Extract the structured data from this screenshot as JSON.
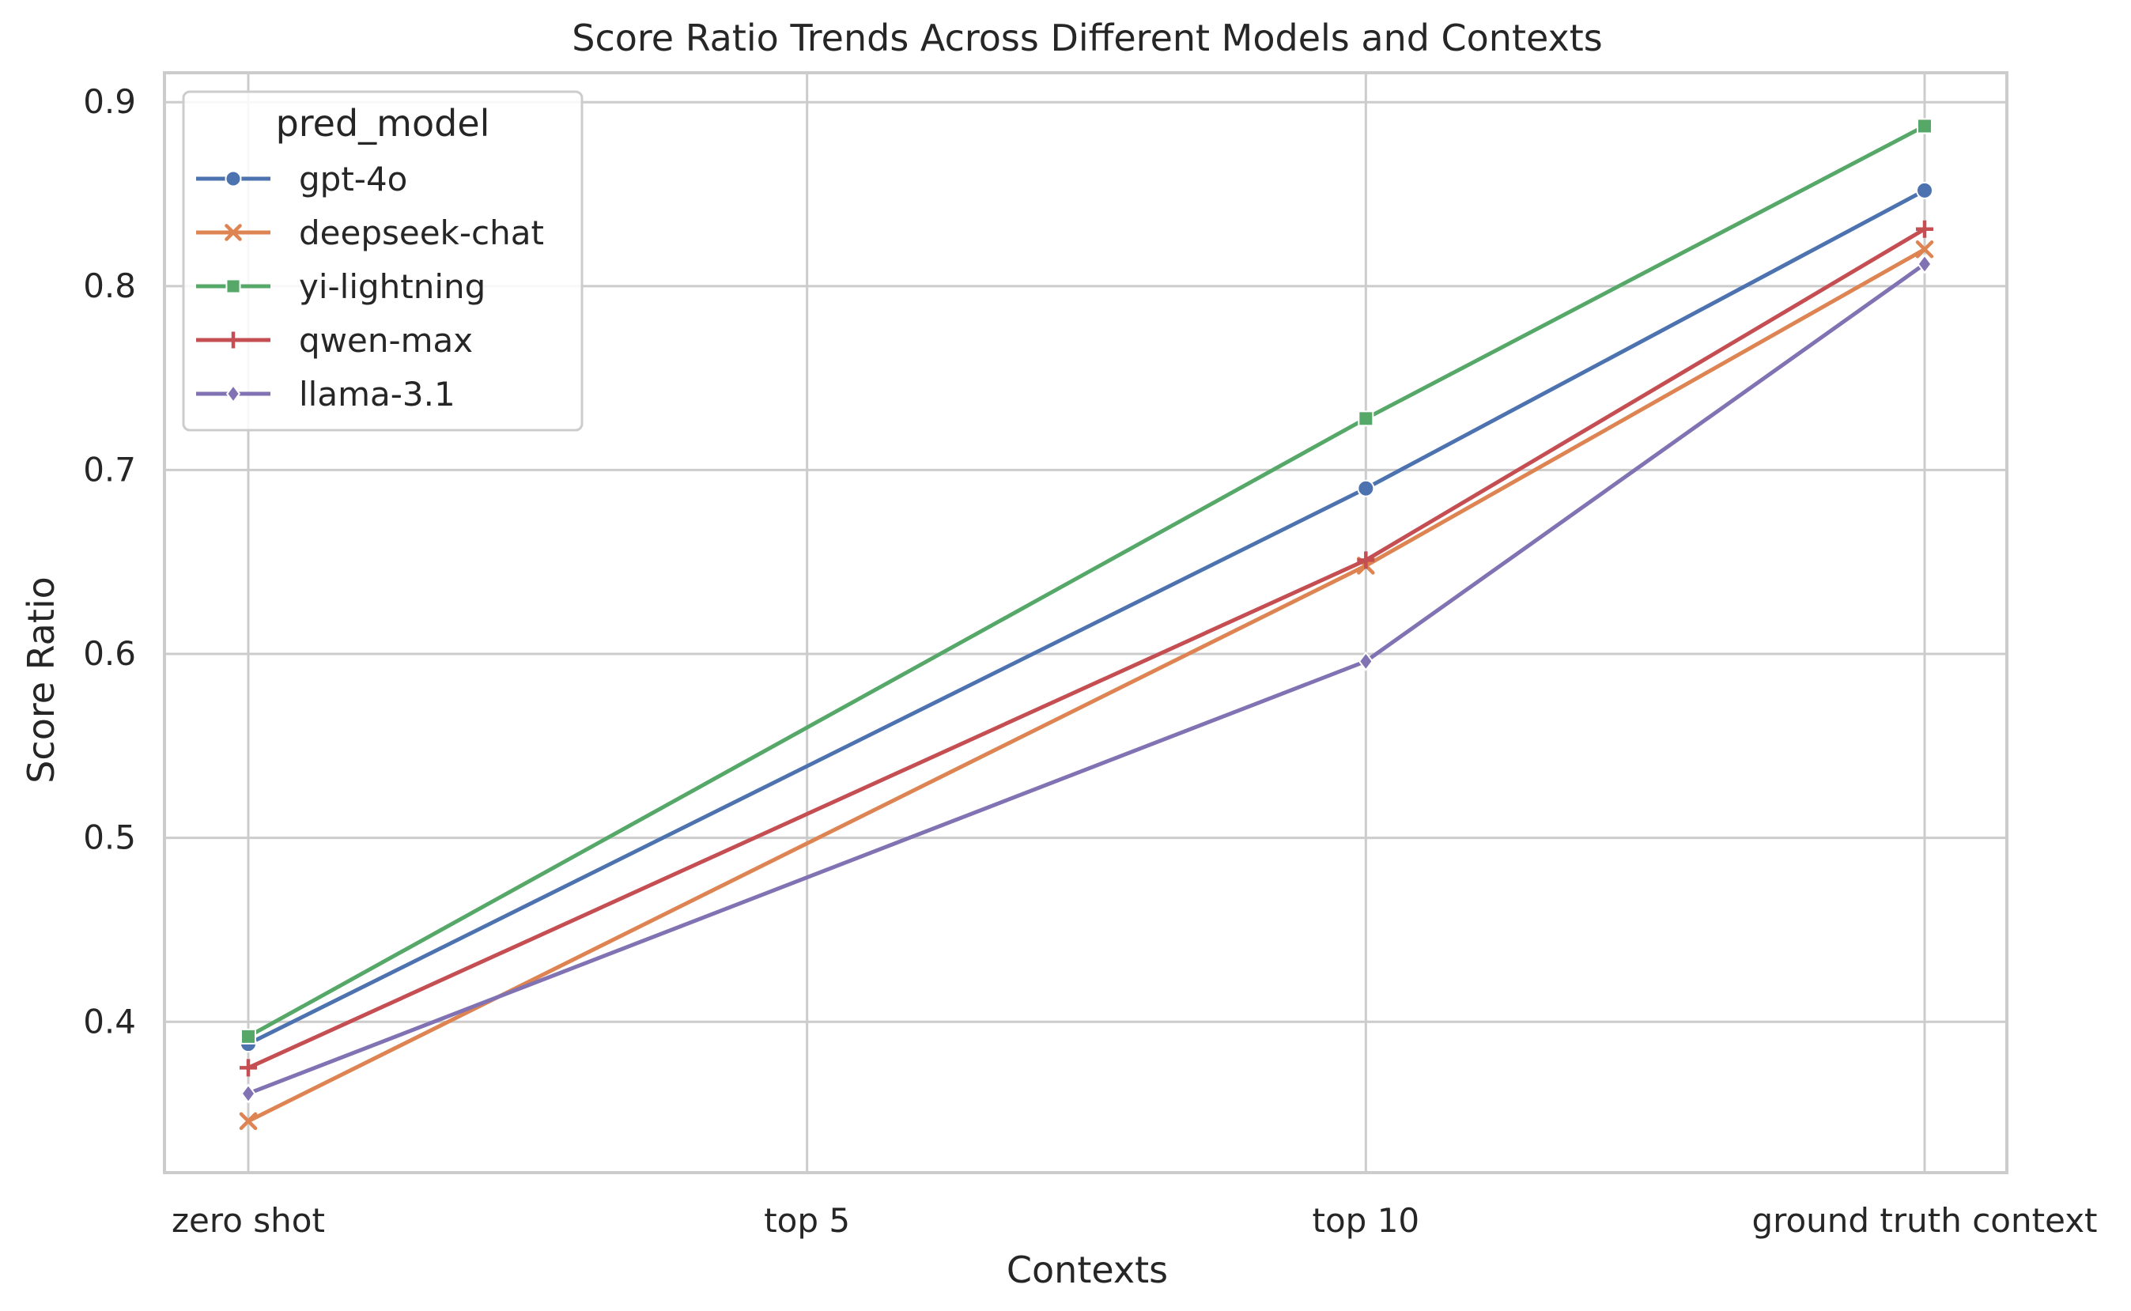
{
  "chart_data": {
    "type": "line",
    "title": "Score Ratio Trends Across Different Models and Contexts",
    "xlabel": "Contexts",
    "ylabel": "Score Ratio",
    "categories": [
      "zero shot",
      "top 5",
      "top 10",
      "ground truth context"
    ],
    "yticks": [
      "0.4",
      "0.5",
      "0.6",
      "0.7",
      "0.8",
      "0.9"
    ],
    "ylim": [
      0.318,
      0.916
    ],
    "grid": true,
    "legend": {
      "title": "pred_model",
      "position": "top-left"
    },
    "series": [
      {
        "name": "gpt-4o",
        "color": "#4c72b0",
        "marker": "circle",
        "values": [
          0.388,
          null,
          0.69,
          0.852
        ]
      },
      {
        "name": "deepseek-chat",
        "color": "#dd8452",
        "marker": "x",
        "values": [
          0.346,
          null,
          0.648,
          0.82
        ]
      },
      {
        "name": "yi-lightning",
        "color": "#55a868",
        "marker": "square",
        "values": [
          0.392,
          null,
          0.728,
          0.887
        ]
      },
      {
        "name": "qwen-max",
        "color": "#c44e52",
        "marker": "plus",
        "values": [
          0.375,
          null,
          0.651,
          0.831
        ]
      },
      {
        "name": "llama-3.1",
        "color": "#8172b3",
        "marker": "diamond",
        "values": [
          0.361,
          null,
          0.596,
          0.812
        ]
      }
    ]
  }
}
